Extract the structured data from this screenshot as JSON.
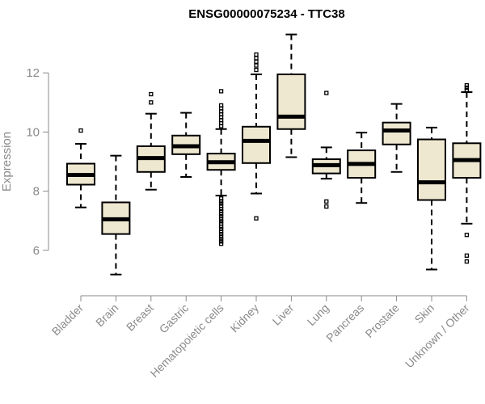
{
  "chart_data": {
    "type": "boxplot",
    "title": "ENSG00000075234 - TTC38",
    "xlabel": "",
    "ylabel": "Expression",
    "ylim": [
      4.9,
      13.7
    ],
    "yticks": [
      6,
      8,
      10,
      12
    ],
    "categories": [
      "Bladder",
      "Brain",
      "Breast",
      "Gastric",
      "Hematopoietic cells",
      "Kidney",
      "Liver",
      "Lung",
      "Pancreas",
      "Prostate",
      "Skin",
      "Unknown / Other"
    ],
    "boxes": [
      {
        "category": "Bladder",
        "whisker_low": 7.45,
        "q1": 8.22,
        "median": 8.55,
        "q3": 8.93,
        "whisker_high": 9.6,
        "outliers": [
          10.05
        ]
      },
      {
        "category": "Brain",
        "whisker_low": 5.18,
        "q1": 6.55,
        "median": 7.05,
        "q3": 7.62,
        "whisker_high": 9.2,
        "outliers": []
      },
      {
        "category": "Breast",
        "whisker_low": 8.05,
        "q1": 8.65,
        "median": 9.12,
        "q3": 9.52,
        "whisker_high": 10.62,
        "outliers": [
          11.0,
          11.28
        ]
      },
      {
        "category": "Gastric",
        "whisker_low": 8.48,
        "q1": 9.25,
        "median": 9.52,
        "q3": 9.88,
        "whisker_high": 10.65,
        "outliers": []
      },
      {
        "category": "Hematopoietic cells",
        "whisker_low": 7.85,
        "q1": 8.72,
        "median": 8.98,
        "q3": 9.27,
        "whisker_high": 10.1,
        "outliers": [
          6.22,
          6.3,
          6.38,
          6.46,
          6.55,
          6.63,
          6.72,
          6.8,
          6.9,
          6.98,
          7.06,
          7.15,
          7.23,
          7.32,
          7.4,
          7.5,
          7.58,
          7.66,
          7.75,
          10.2,
          10.3,
          10.4,
          10.5,
          10.6,
          10.7,
          10.8,
          10.9,
          11.38
        ]
      },
      {
        "category": "Kidney",
        "whisker_low": 7.92,
        "q1": 8.95,
        "median": 9.7,
        "q3": 10.18,
        "whisker_high": 11.95,
        "outliers": [
          7.08,
          12.1,
          12.25,
          12.38,
          12.5,
          12.62
        ]
      },
      {
        "category": "Liver",
        "whisker_low": 9.15,
        "q1": 10.1,
        "median": 10.52,
        "q3": 11.95,
        "whisker_high": 13.3,
        "outliers": []
      },
      {
        "category": "Lung",
        "whisker_low": 8.42,
        "q1": 8.6,
        "median": 8.88,
        "q3": 9.08,
        "whisker_high": 9.48,
        "outliers": [
          7.48,
          7.65,
          11.32
        ]
      },
      {
        "category": "Pancreas",
        "whisker_low": 7.6,
        "q1": 8.45,
        "median": 8.92,
        "q3": 9.38,
        "whisker_high": 9.98,
        "outliers": []
      },
      {
        "category": "Prostate",
        "whisker_low": 8.65,
        "q1": 9.58,
        "median": 10.05,
        "q3": 10.32,
        "whisker_high": 10.95,
        "outliers": []
      },
      {
        "category": "Skin",
        "whisker_low": 5.35,
        "q1": 7.7,
        "median": 8.3,
        "q3": 9.75,
        "whisker_high": 10.15,
        "outliers": []
      },
      {
        "category": "Unknown / Other",
        "whisker_low": 6.9,
        "q1": 8.45,
        "median": 9.05,
        "q3": 9.62,
        "whisker_high": 11.35,
        "outliers": [
          5.62,
          5.82,
          6.52,
          11.42,
          11.5,
          11.58
        ]
      }
    ],
    "grid": false,
    "legend": "none"
  }
}
